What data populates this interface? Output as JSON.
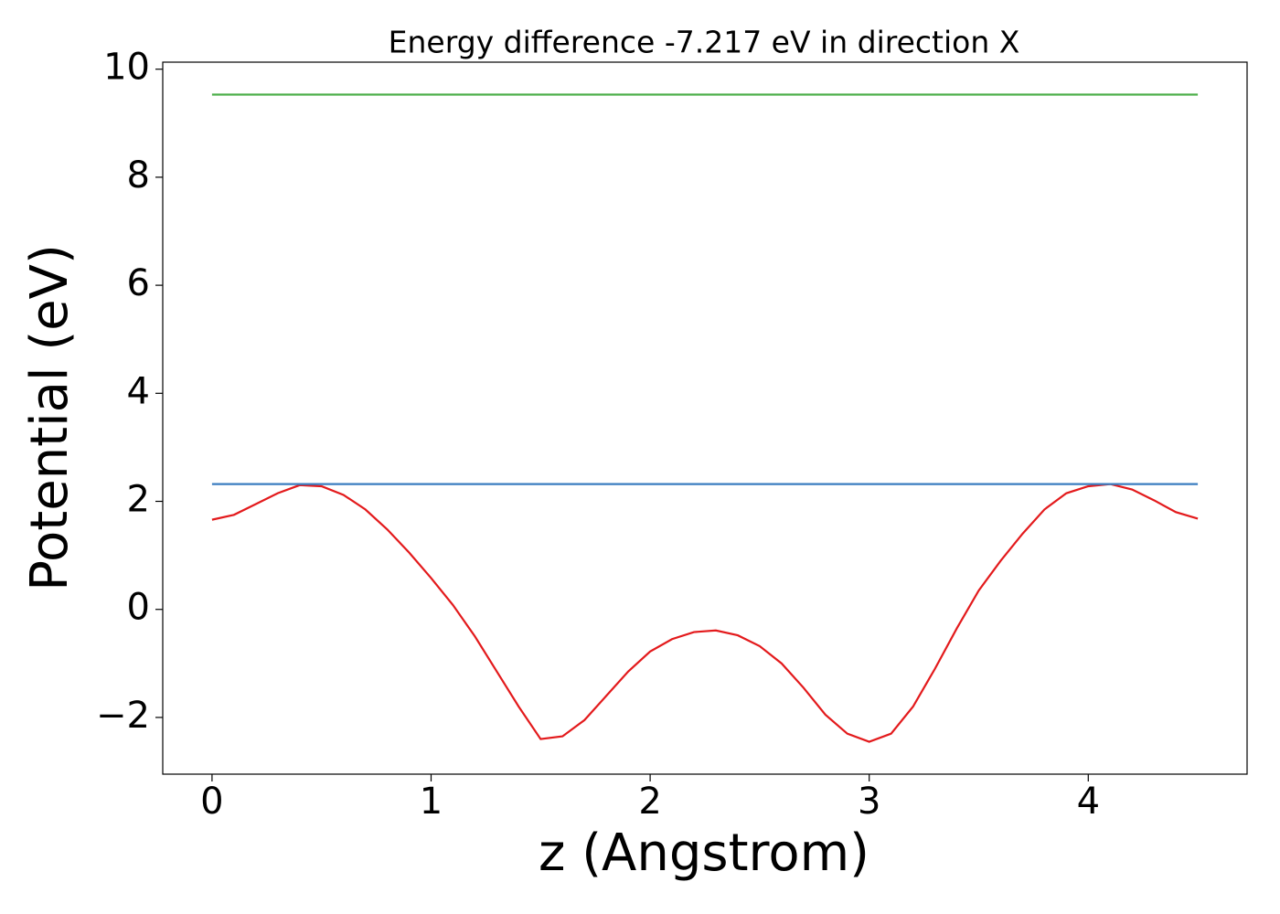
{
  "chart_data": {
    "type": "line",
    "title": "Energy difference -7.217 eV in direction X",
    "xlabel": "z (Angstrom)",
    "ylabel": "Potential (eV)",
    "xlim": [
      -0.225,
      4.725
    ],
    "xticks": [
      0,
      1,
      2,
      3,
      4
    ],
    "ylim": [
      -3.05,
      10.13
    ],
    "yticks": [
      {
        "value": -2,
        "label": "−2"
      },
      0,
      2,
      4,
      6,
      8,
      10
    ],
    "grid": false,
    "series": [
      {
        "color": "#e31a1c",
        "x": [
          0,
          0.1,
          0.2,
          0.3,
          0.4,
          0.5,
          0.6,
          0.7,
          0.8,
          0.9,
          1.0,
          1.1,
          1.2,
          1.3,
          1.4,
          1.5,
          1.6,
          1.7,
          1.8,
          1.9,
          2.0,
          2.1,
          2.2,
          2.3,
          2.4,
          2.5,
          2.6,
          2.7,
          2.8,
          2.9,
          3.0,
          3.1,
          3.2,
          3.3,
          3.4,
          3.5,
          3.6,
          3.7,
          3.8,
          3.9,
          4.0,
          4.1,
          4.2,
          4.3,
          4.4,
          4.5
        ],
        "values": [
          1.66,
          1.75,
          1.95,
          2.15,
          2.3,
          2.28,
          2.12,
          1.85,
          1.48,
          1.05,
          0.58,
          0.08,
          -0.5,
          -1.15,
          -1.8,
          -2.4,
          -2.35,
          -2.05,
          -1.6,
          -1.15,
          -0.78,
          -0.55,
          -0.42,
          -0.39,
          -0.48,
          -0.68,
          -1.0,
          -1.45,
          -1.95,
          -2.3,
          -2.45,
          -2.3,
          -1.8,
          -1.1,
          -0.35,
          0.35,
          0.9,
          1.4,
          1.85,
          2.15,
          2.28,
          2.32,
          2.22,
          2.02,
          1.8,
          1.68
        ]
      },
      {
        "color": "#3a7dc0",
        "x": [
          0,
          4.5
        ],
        "values": [
          2.32,
          2.32
        ]
      },
      {
        "color": "#4daf4a",
        "x": [
          0,
          4.5
        ],
        "values": [
          9.53,
          9.53
        ]
      }
    ]
  }
}
